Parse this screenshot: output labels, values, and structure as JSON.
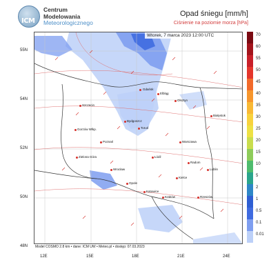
{
  "logo": {
    "short": "ICM",
    "line1": "Centrum",
    "line2": "Modelowania",
    "line3": "Meteorologicznego"
  },
  "title": "Opad śniegu [mm/h]",
  "subtitle": "Ciśnienie na poziomie morza [hPa]",
  "timestamp": "Wtorek, 7 marca 2023 12:00 UTC",
  "footer": "Model COSMO 2.8 km • dane: ICM UW • Meteo.pl • dostęp: 07.03.2023",
  "axes": {
    "lat_labels": [
      "55N",
      "54N",
      "52N",
      "50N",
      "48N"
    ],
    "lon_labels": [
      "12E",
      "15E",
      "18E",
      "21E",
      "24E"
    ]
  },
  "legend": {
    "labels": [
      "70",
      "60",
      "55",
      "50",
      "45",
      "40",
      "35",
      "30",
      "25",
      "20",
      "15",
      "10",
      "5",
      "2",
      "1",
      "0.5",
      "0.1",
      "0.01"
    ],
    "colors": [
      "#7a0a12",
      "#a3141c",
      "#c8202a",
      "#e4362c",
      "#f26a2b",
      "#f7962d",
      "#f9b935",
      "#f8d23d",
      "#eee144",
      "#c9dd4d",
      "#8ecc5a",
      "#4ebc6d",
      "#2aa58c",
      "#2e87c7",
      "#2f5fd3",
      "#3f6be0",
      "#7e9ef0",
      "#bcd0f8"
    ]
  },
  "cities": [
    {
      "name": "Gdańsk"
    },
    {
      "name": "Olsztyn"
    },
    {
      "name": "Elbląg"
    },
    {
      "name": "Białystok"
    },
    {
      "name": "Szczecin"
    },
    {
      "name": "Bydgoszcz"
    },
    {
      "name": "Toruń"
    },
    {
      "name": "Gorzów Wlkp."
    },
    {
      "name": "Poznań"
    },
    {
      "name": "Łódź"
    },
    {
      "name": "Warszawa"
    },
    {
      "name": "Zielona Góra"
    },
    {
      "name": "Wrocław"
    },
    {
      "name": "Opole"
    },
    {
      "name": "Katowice"
    },
    {
      "name": "Kraków"
    },
    {
      "name": "Kielce"
    },
    {
      "name": "Radom"
    },
    {
      "name": "Lublin"
    },
    {
      "name": "Rzeszów"
    }
  ]
}
